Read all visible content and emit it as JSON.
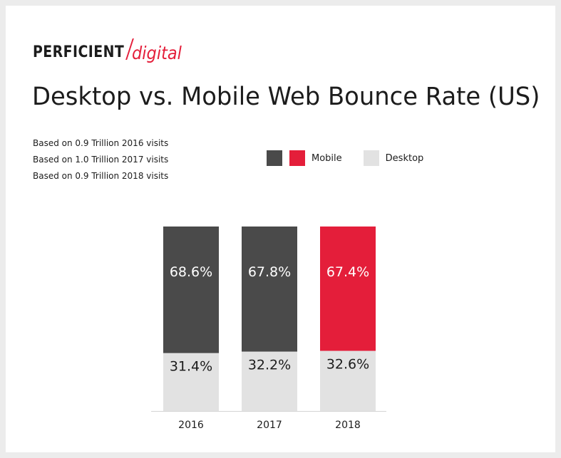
{
  "brand": {
    "name": "PERFICIENT",
    "sub": "digital",
    "accent": "#e41e3a"
  },
  "title": "Desktop vs. Mobile Web Bounce Rate (US)",
  "notes": [
    "Based on 0.9 Trillion 2016 visits",
    "Based on 1.0 Trillion 2017 visits",
    "Based on 0.9 Trillion 2018 visits"
  ],
  "legend": {
    "mobile_label": "Mobile",
    "desktop_label": "Desktop",
    "mobile_colors": [
      "#4a4a4a",
      "#e41e3a"
    ],
    "desktop_color": "#e2e2e2"
  },
  "chart_data": {
    "type": "bar",
    "stacked": true,
    "title": "Desktop vs. Mobile Web Bounce Rate (US)",
    "categories": [
      "2016",
      "2017",
      "2018"
    ],
    "series": [
      {
        "name": "Desktop",
        "values": [
          31.4,
          32.2,
          32.6
        ],
        "labels": [
          "31.4%",
          "32.2%",
          "32.6%"
        ],
        "colors": [
          "#e2e2e2",
          "#e2e2e2",
          "#e2e2e2"
        ]
      },
      {
        "name": "Mobile",
        "values": [
          68.6,
          67.8,
          67.4
        ],
        "labels": [
          "68.6%",
          "67.8%",
          "67.4%"
        ],
        "colors": [
          "#4a4a4a",
          "#4a4a4a",
          "#e41e3a"
        ]
      }
    ],
    "ylim": [
      0,
      100
    ],
    "grid": false,
    "legend_position": "top-right"
  }
}
